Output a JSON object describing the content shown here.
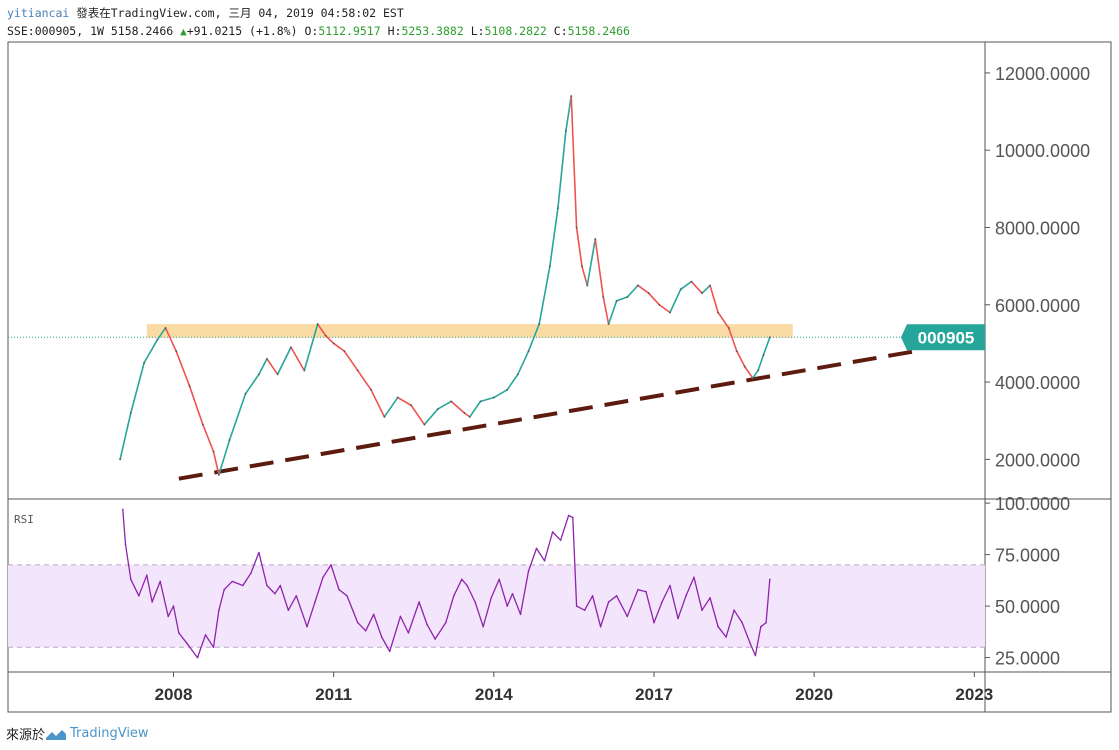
{
  "header": {
    "user": "yitiancai",
    "published": "發表在TradingView.com, 三月 04, 2019 04:58:02 EST",
    "symbol": "SSE:000905, 1W",
    "last": "5158.2466",
    "change": "+91.0215 (+1.8%)",
    "open_label": "O:",
    "open": "5112.9517",
    "high_label": "H:",
    "high": "5253.3882",
    "low_label": "L:",
    "low": "5108.2822",
    "close_label": "C:",
    "close": "5158.2466"
  },
  "footer": {
    "source_label": "來源於",
    "brand": "TradingView"
  },
  "colors": {
    "up": "#26a69a",
    "down": "#ef5350",
    "rsi": "#8e24aa",
    "rsi_band": "#f3e5fc",
    "resistance": "#f9cf86",
    "trendline": "#5d1a0e",
    "badge": "#26a69a"
  },
  "chart_data": [
    {
      "type": "line",
      "title": "",
      "symbol_badge": "000905",
      "yticks": [
        2000,
        4000,
        6000,
        8000,
        10000,
        12000
      ],
      "ytick_labels": [
        "2000.0000",
        "4000.0000",
        "6000.0000",
        "8000.0000",
        "10000.0000",
        "12000.0000"
      ],
      "ylim": [
        1000,
        12800
      ],
      "xlim": [
        2004.9,
        2023.2
      ],
      "xticks": [
        2008,
        2011,
        2014,
        2017,
        2020,
        2023
      ],
      "xtick_labels": [
        "2008",
        "2011",
        "2014",
        "2017",
        "2020",
        "2023"
      ],
      "series": [
        {
          "x": [
            2007.0,
            2007.2,
            2007.45,
            2007.7,
            2007.85,
            2008.05,
            2008.3,
            2008.55,
            2008.75,
            2008.85,
            2009.05,
            2009.35,
            2009.6,
            2009.75,
            2009.95,
            2010.2,
            2010.45,
            2010.7,
            2010.85,
            2011.0,
            2011.2,
            2011.45,
            2011.7,
            2011.95,
            2012.2,
            2012.45,
            2012.7,
            2012.95,
            2013.2,
            2013.45,
            2013.55,
            2013.75,
            2014.0,
            2014.25,
            2014.45,
            2014.65,
            2014.85,
            2015.05,
            2015.2,
            2015.35,
            2015.45,
            2015.55,
            2015.65,
            2015.75,
            2015.9,
            2016.05,
            2016.15,
            2016.3,
            2016.5,
            2016.7,
            2016.9,
            2017.1,
            2017.3,
            2017.5,
            2017.7,
            2017.9,
            2018.05,
            2018.2,
            2018.4,
            2018.55,
            2018.7,
            2018.85,
            2018.95,
            2019.05,
            2019.17
          ],
          "y": [
            2000,
            3200,
            4500,
            5100,
            5400,
            4800,
            3900,
            2900,
            2200,
            1600,
            2500,
            3700,
            4200,
            4600,
            4200,
            4900,
            4300,
            5500,
            5200,
            5000,
            4800,
            4300,
            3800,
            3100,
            3600,
            3400,
            2900,
            3300,
            3500,
            3200,
            3100,
            3500,
            3600,
            3800,
            4200,
            4800,
            5500,
            7000,
            8500,
            10500,
            11400,
            8000,
            7000,
            6500,
            7700,
            6200,
            5500,
            6100,
            6200,
            6500,
            6300,
            6000,
            5800,
            6400,
            6600,
            6300,
            6500,
            5800,
            5400,
            4800,
            4400,
            4100,
            4300,
            4700,
            5158
          ]
        }
      ],
      "support_line": {
        "x": [
          2008.1,
          2021.9
        ],
        "y": [
          1500,
          4800
        ]
      },
      "resistance_zone": {
        "x": [
          2007.5,
          2019.6
        ],
        "y": [
          5150,
          5500
        ]
      },
      "last_price": 5158.2466
    },
    {
      "type": "line",
      "title": "RSI",
      "yticks": [
        25,
        50,
        75,
        100
      ],
      "ytick_labels": [
        "25.0000",
        "50.0000",
        "75.0000",
        "100.0000"
      ],
      "ylim": [
        18,
        102
      ],
      "band": [
        30,
        70
      ],
      "series": [
        {
          "x": [
            2007.05,
            2007.1,
            2007.2,
            2007.35,
            2007.5,
            2007.6,
            2007.75,
            2007.9,
            2008.0,
            2008.1,
            2008.25,
            2008.45,
            2008.6,
            2008.75,
            2008.85,
            2008.95,
            2009.1,
            2009.3,
            2009.45,
            2009.6,
            2009.75,
            2009.9,
            2010.0,
            2010.15,
            2010.3,
            2010.5,
            2010.65,
            2010.8,
            2010.95,
            2011.1,
            2011.25,
            2011.45,
            2011.6,
            2011.75,
            2011.9,
            2012.05,
            2012.25,
            2012.4,
            2012.6,
            2012.75,
            2012.9,
            2013.1,
            2013.25,
            2013.4,
            2013.5,
            2013.65,
            2013.8,
            2013.95,
            2014.1,
            2014.25,
            2014.35,
            2014.5,
            2014.65,
            2014.8,
            2014.95,
            2015.1,
            2015.25,
            2015.4,
            2015.48,
            2015.55,
            2015.7,
            2015.85,
            2016.0,
            2016.15,
            2016.3,
            2016.5,
            2016.7,
            2016.85,
            2017.0,
            2017.15,
            2017.3,
            2017.45,
            2017.6,
            2017.75,
            2017.9,
            2018.05,
            2018.2,
            2018.35,
            2018.5,
            2018.65,
            2018.8,
            2018.9,
            2019.0,
            2019.1,
            2019.17
          ],
          "y": [
            97,
            80,
            63,
            55,
            65,
            52,
            62,
            45,
            50,
            37,
            32,
            25,
            36,
            30,
            48,
            58,
            62,
            60,
            66,
            76,
            60,
            56,
            60,
            48,
            55,
            40,
            52,
            64,
            70,
            58,
            55,
            42,
            38,
            46,
            35,
            28,
            45,
            37,
            52,
            41,
            34,
            42,
            55,
            63,
            60,
            52,
            40,
            54,
            63,
            50,
            56,
            46,
            67,
            78,
            72,
            86,
            82,
            94,
            93,
            50,
            48,
            55,
            40,
            52,
            55,
            45,
            58,
            57,
            42,
            52,
            60,
            44,
            55,
            64,
            48,
            54,
            40,
            35,
            48,
            42,
            32,
            26,
            40,
            42,
            63
          ]
        }
      ]
    }
  ]
}
